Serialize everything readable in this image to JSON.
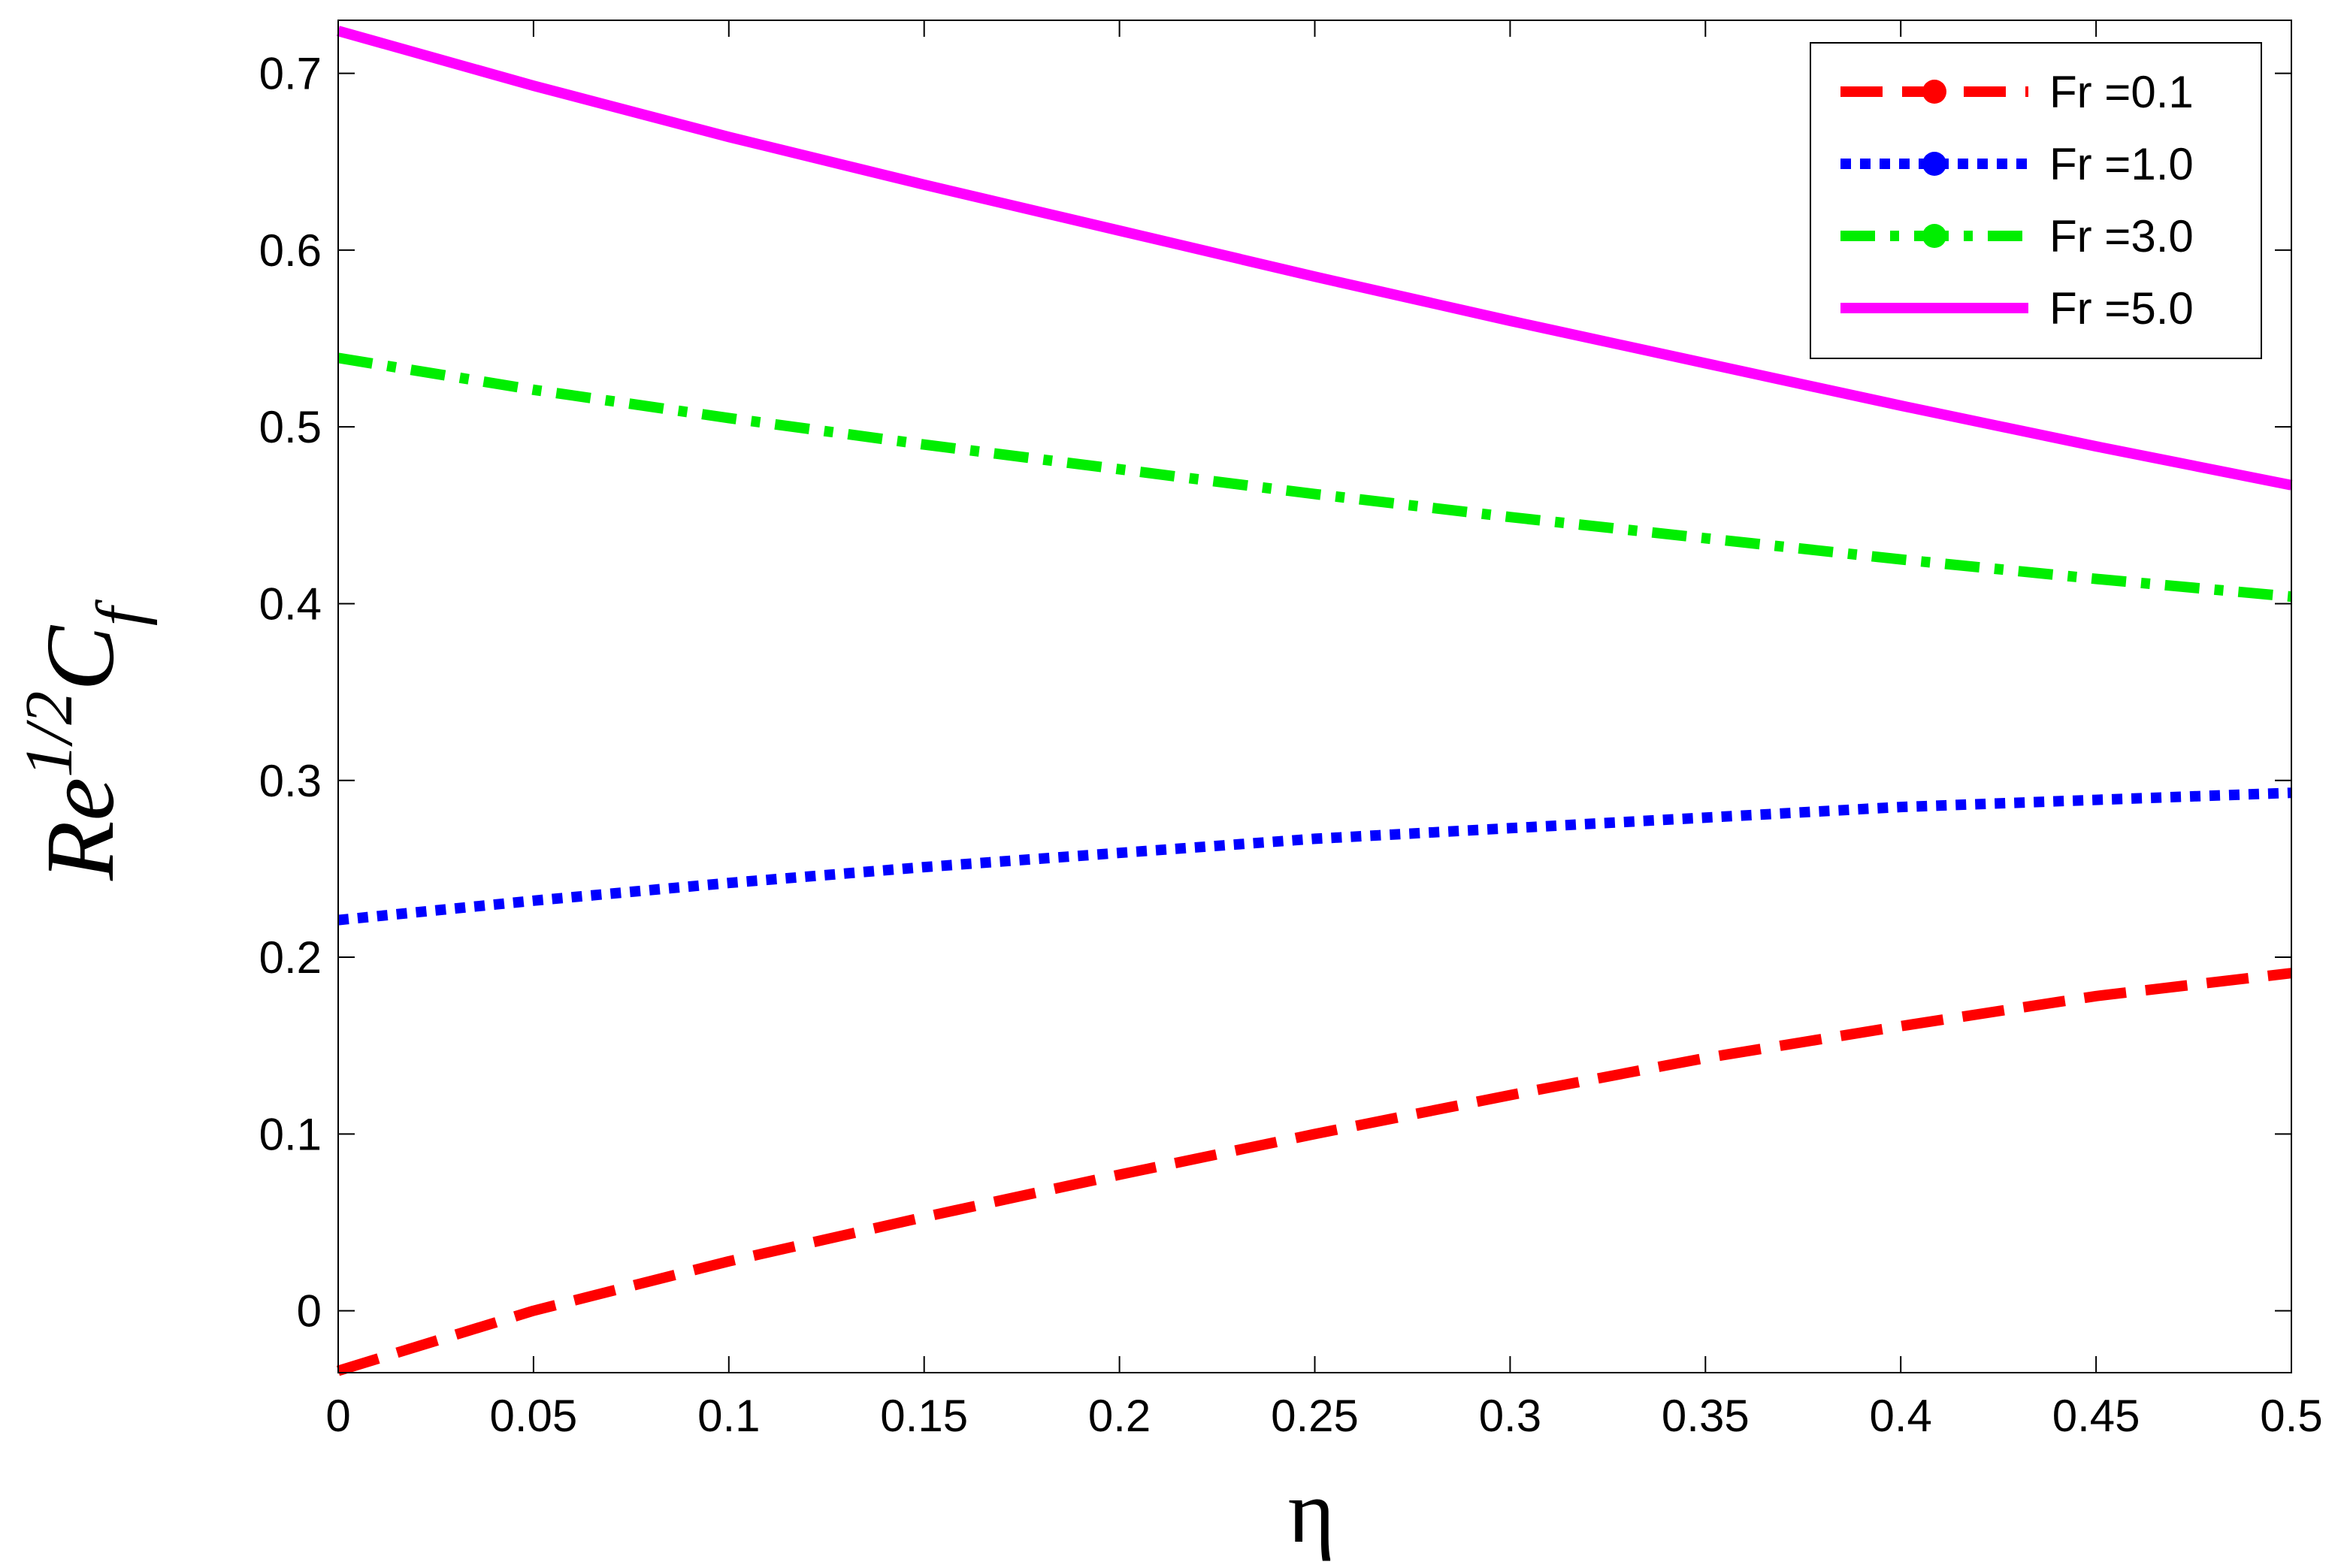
{
  "chart_data": {
    "type": "line",
    "title": "",
    "xlabel": "η",
    "ylabel": {
      "base": "Re",
      "sup": "1/2",
      "main": "C",
      "sub": "f"
    },
    "xlim": [
      0,
      0.5
    ],
    "ylim": [
      -0.035,
      0.73
    ],
    "xticks": [
      0,
      0.05,
      0.1,
      0.15,
      0.2,
      0.25,
      0.3,
      0.35,
      0.4,
      0.45,
      0.5
    ],
    "xtick_labels": [
      "0",
      "0.05",
      "0.1",
      "0.15",
      "0.2",
      "0.25",
      "0.3",
      "0.35",
      "0.4",
      "0.45",
      "0.5"
    ],
    "yticks": [
      0,
      0.1,
      0.2,
      0.3,
      0.4,
      0.5,
      0.6,
      0.7
    ],
    "ytick_labels": [
      "0",
      "0.1",
      "0.2",
      "0.3",
      "0.4",
      "0.5",
      "0.6",
      "0.7"
    ],
    "grid": false,
    "legend_position": "top-right",
    "x": [
      0,
      0.05,
      0.1,
      0.15,
      0.2,
      0.25,
      0.3,
      0.35,
      0.4,
      0.45,
      0.5
    ],
    "series": [
      {
        "name": "Fr =0.1",
        "color": "#ff0000",
        "dash": "dashed",
        "marker": "dot",
        "values": [
          -0.034,
          0.0,
          0.028,
          0.053,
          0.077,
          0.1,
          0.122,
          0.143,
          0.161,
          0.178,
          0.191
        ]
      },
      {
        "name": "Fr =1.0",
        "color": "#0000ff",
        "dash": "dotted",
        "marker": "dot",
        "values": [
          0.221,
          0.232,
          0.242,
          0.251,
          0.259,
          0.267,
          0.273,
          0.279,
          0.285,
          0.289,
          0.293
        ]
      },
      {
        "name": "Fr =3.0",
        "color": "#00ee00",
        "dash": "dashdot",
        "marker": "dot",
        "values": [
          0.539,
          0.521,
          0.505,
          0.49,
          0.476,
          0.462,
          0.449,
          0.437,
          0.425,
          0.414,
          0.404
        ]
      },
      {
        "name": "Fr =5.0",
        "color": "#ff00ff",
        "dash": "solid",
        "marker": "none",
        "values": [
          0.724,
          0.693,
          0.664,
          0.637,
          0.611,
          0.585,
          0.56,
          0.536,
          0.512,
          0.489,
          0.467
        ]
      }
    ]
  }
}
